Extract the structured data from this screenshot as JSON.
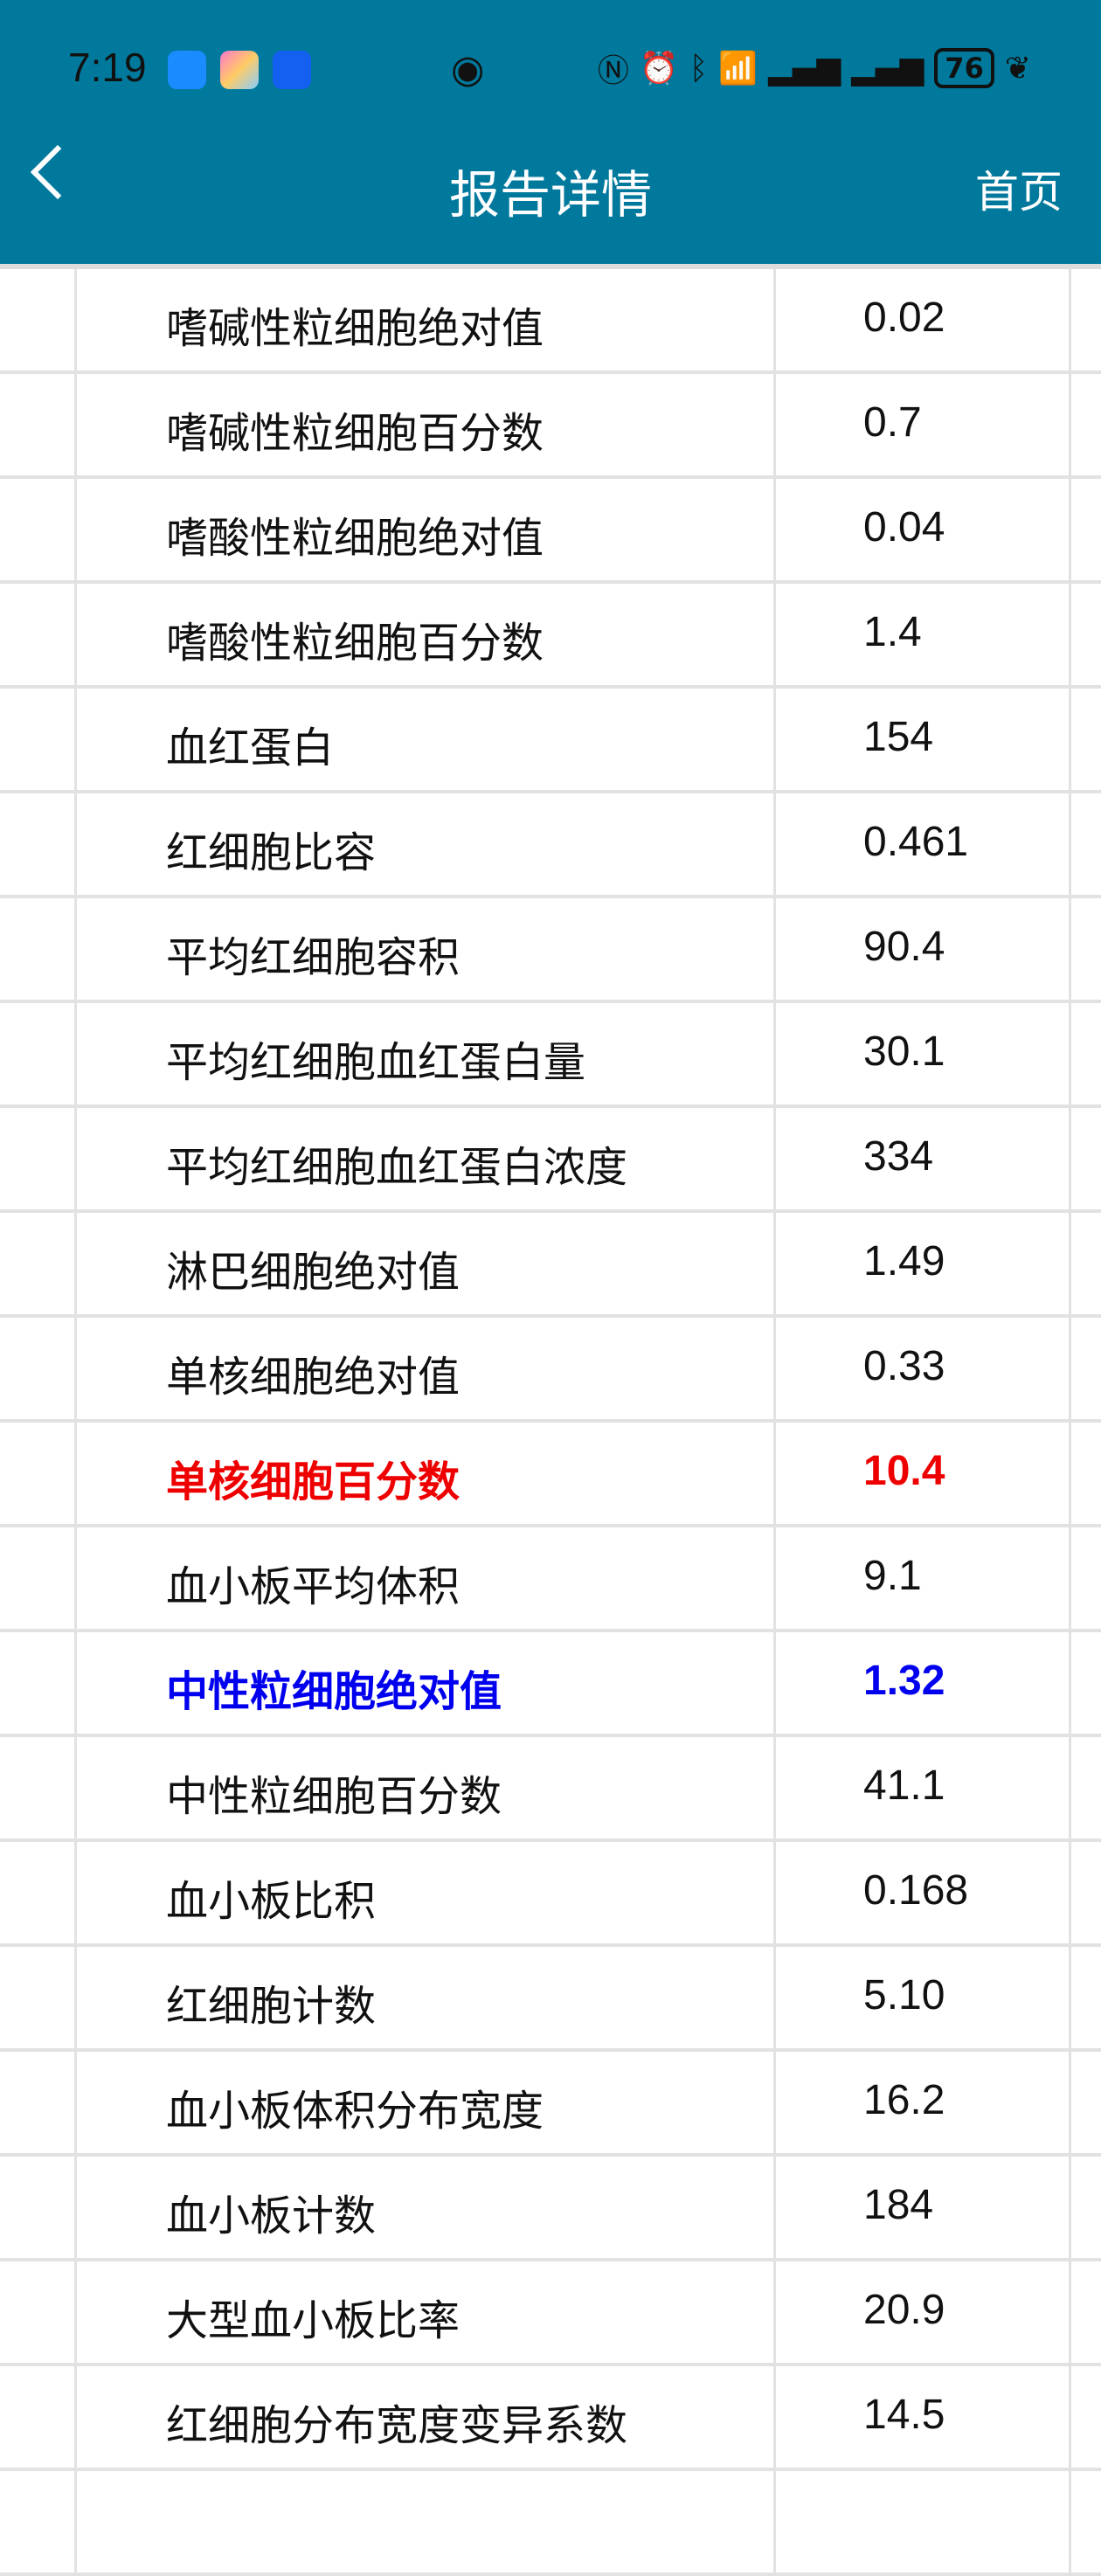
{
  "status_bar": {
    "time": "7:19",
    "battery": "76",
    "icons": [
      "message-icon",
      "gallery-icon",
      "bulb-icon",
      "eye-icon",
      "nfc-icon",
      "alarm-icon",
      "bluetooth-icon",
      "wifi-icon",
      "signal-icon",
      "signal-icon",
      "battery-icon",
      "leaf-icon"
    ]
  },
  "header": {
    "title": "报告详情",
    "home_label": "首页",
    "bg_color": "#00799c"
  },
  "colors": {
    "high": "#ee0000",
    "low": "#0000ee"
  },
  "rows": [
    {
      "name": "嗜碱性粒细胞绝对值",
      "value": "0.02",
      "flag": ""
    },
    {
      "name": "嗜碱性粒细胞百分数",
      "value": "0.7",
      "flag": ""
    },
    {
      "name": "嗜酸性粒细胞绝对值",
      "value": "0.04",
      "flag": ""
    },
    {
      "name": "嗜酸性粒细胞百分数",
      "value": "1.4",
      "flag": ""
    },
    {
      "name": "血红蛋白",
      "value": "154",
      "flag": ""
    },
    {
      "name": "红细胞比容",
      "value": "0.461",
      "flag": ""
    },
    {
      "name": "平均红细胞容积",
      "value": "90.4",
      "flag": ""
    },
    {
      "name": "平均红细胞血红蛋白量",
      "value": "30.1",
      "flag": ""
    },
    {
      "name": "平均红细胞血红蛋白浓度",
      "value": "334",
      "flag": ""
    },
    {
      "name": "淋巴细胞绝对值",
      "value": "1.49",
      "flag": ""
    },
    {
      "name": "单核细胞绝对值",
      "value": "0.33",
      "flag": ""
    },
    {
      "name": "单核细胞百分数",
      "value": "10.4",
      "flag": "high"
    },
    {
      "name": "血小板平均体积",
      "value": "9.1",
      "flag": ""
    },
    {
      "name": "中性粒细胞绝对值",
      "value": "1.32",
      "flag": "low"
    },
    {
      "name": "中性粒细胞百分数",
      "value": "41.1",
      "flag": ""
    },
    {
      "name": "血小板比积",
      "value": "0.168",
      "flag": ""
    },
    {
      "name": "红细胞计数",
      "value": "5.10",
      "flag": ""
    },
    {
      "name": "血小板体积分布宽度",
      "value": "16.2",
      "flag": ""
    },
    {
      "name": "血小板计数",
      "value": "184",
      "flag": ""
    },
    {
      "name": "大型血小板比率",
      "value": "20.9",
      "flag": ""
    },
    {
      "name": "红细胞分布宽度变异系数",
      "value": "14.5",
      "flag": ""
    }
  ]
}
